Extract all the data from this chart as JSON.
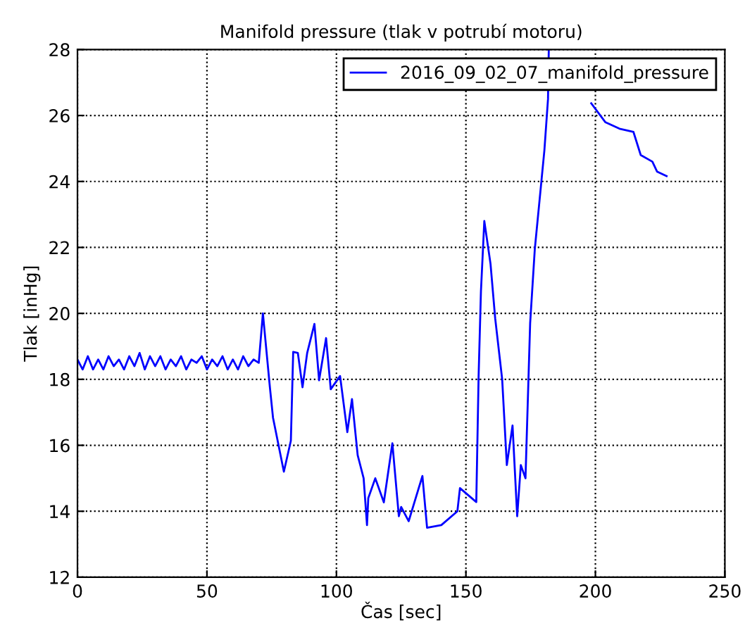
{
  "chart_data": {
    "type": "line",
    "title": "Manifold pressure (tlak v potrubí motoru)",
    "xlabel": "Čas [sec]",
    "ylabel": "Tlak [inHg]",
    "xlim": [
      0,
      250
    ],
    "ylim": [
      12,
      28
    ],
    "xticks": [
      0,
      50,
      100,
      150,
      200,
      250
    ],
    "yticks": [
      12,
      14,
      16,
      18,
      20,
      22,
      24,
      26,
      28
    ],
    "grid": true,
    "legend": "top right",
    "line_style": "solid",
    "marker": "none",
    "series": [
      {
        "name": "2016_09_02_07_manifold_pressure",
        "color": "#0000ff",
        "x": [
          0,
          2,
          4,
          6,
          8,
          10,
          12,
          14,
          16,
          18,
          20,
          22,
          24,
          26,
          28,
          30,
          32,
          34,
          36,
          38,
          40,
          42,
          44,
          46,
          48,
          50,
          52,
          54,
          56,
          58,
          60,
          62,
          64,
          66,
          68,
          70,
          71.6,
          74.3,
          75.5,
          79.7,
          82.4,
          83.3,
          85.1,
          86.9,
          88.7,
          91.5,
          93.3,
          96,
          97.8,
          101.4,
          104.2,
          106,
          108.2,
          110.5,
          111.8,
          112.3,
          115,
          118.3,
          121.6,
          124.1,
          125,
          127.9,
          133.2,
          135,
          140.5,
          146.7,
          147.7,
          154,
          154.9,
          155.8,
          157.1,
          159.5,
          161.3,
          164,
          165.8,
          168,
          169.8,
          171.2,
          173,
          174.8,
          176.6,
          180.3,
          181.7,
          182,
          190,
          198.4,
          203.8,
          209.3,
          214.7,
          217.5,
          222,
          223.8,
          227.5
        ],
        "values": [
          18.6,
          18.3,
          18.7,
          18.3,
          18.6,
          18.3,
          18.7,
          18.4,
          18.6,
          18.3,
          18.7,
          18.4,
          18.8,
          18.3,
          18.7,
          18.4,
          18.7,
          18.3,
          18.6,
          18.4,
          18.7,
          18.3,
          18.6,
          18.5,
          18.7,
          18.3,
          18.6,
          18.4,
          18.7,
          18.3,
          18.6,
          18.3,
          18.7,
          18.4,
          18.6,
          18.5,
          20.0,
          17.76,
          16.84,
          15.2,
          16.14,
          18.83,
          18.8,
          17.76,
          18.8,
          19.68,
          17.97,
          19.25,
          17.7,
          18.1,
          16.4,
          17.4,
          15.7,
          15.0,
          13.58,
          14.4,
          15.0,
          14.27,
          16.06,
          13.85,
          14.13,
          13.7,
          15.07,
          13.5,
          13.58,
          14.0,
          14.7,
          14.28,
          18.1,
          20.67,
          22.8,
          21.5,
          19.85,
          18.0,
          15.4,
          16.6,
          13.85,
          15.4,
          15.0,
          19.7,
          21.95,
          24.94,
          26.5,
          28,
          null,
          26.37,
          25.8,
          25.6,
          25.5,
          24.8,
          24.6,
          24.3,
          24.16
        ]
      }
    ]
  }
}
